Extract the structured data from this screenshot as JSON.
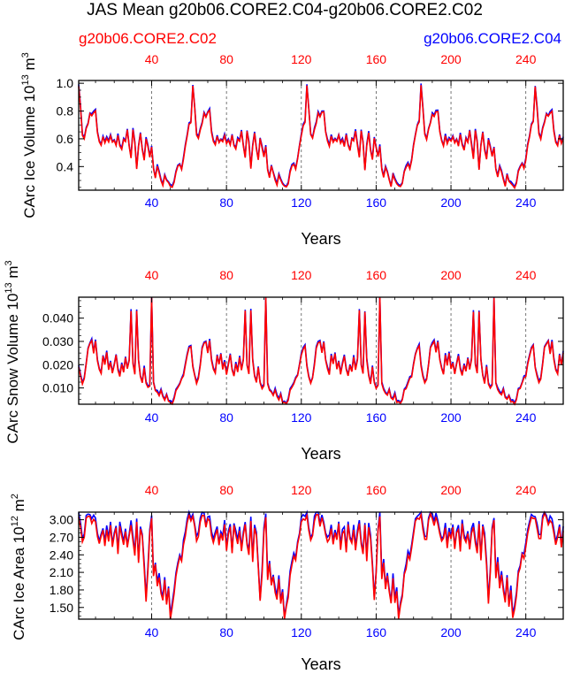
{
  "title": "JAS Mean g20b06.CORE2.C04-g20b06.CORE2.C02",
  "colors": {
    "case_red": "#ff0000",
    "case_blue": "#0000ff",
    "axis": "#000000",
    "grid": "#555555"
  },
  "legend": {
    "left": "g20b06.CORE2.C02",
    "right": "g20b06.CORE2.C04"
  },
  "chart_data": [
    {
      "type": "line",
      "ylabel": "CArc Ice Volume 10",
      "ylabel_exp": "13",
      "ylabel_unit": " m",
      "ylabel_unit_exp": "3",
      "xlabel": "Years",
      "xlim": [
        1,
        260
      ],
      "ylim": [
        0.23,
        1.02
      ],
      "yticks": [
        0.4,
        0.6,
        0.8,
        1.0
      ],
      "ytick_labels": [
        "0.4",
        "0.6",
        "0.8",
        "1.0"
      ],
      "top_ticks": [
        "40",
        "80",
        "120",
        "160",
        "200",
        "240"
      ],
      "bottom_ticks": [
        "40",
        "80",
        "120",
        "160",
        "200",
        "240"
      ],
      "tick_values": [
        40,
        80,
        120,
        160,
        200,
        240
      ],
      "cycle": [
        0.98,
        0.82,
        0.63,
        0.6,
        0.67,
        0.71,
        0.78,
        0.76,
        0.79,
        0.8,
        0.65,
        0.58,
        0.55,
        0.62,
        0.57,
        0.6,
        0.58,
        0.62,
        0.57,
        0.59,
        0.55,
        0.63,
        0.55,
        0.52,
        0.6,
        0.58,
        0.66,
        0.55,
        0.46,
        0.66,
        0.57,
        0.38,
        0.55,
        0.64,
        0.52,
        0.45,
        0.6,
        0.54,
        0.47,
        0.54,
        0.38,
        0.32,
        0.4,
        0.36,
        0.3,
        0.26,
        0.34,
        0.3,
        0.28,
        0.26,
        0.25,
        0.28,
        0.36,
        0.4,
        0.42,
        0.38,
        0.45,
        0.55,
        0.62,
        0.7,
        0.72
      ],
      "period": 61,
      "offset_cycle": 0.01,
      "series": [
        {
          "name": "g20b06.CORE2.C04",
          "color": "#0000ff"
        },
        {
          "name": "g20b06.CORE2.C02",
          "color": "#ff0000"
        }
      ]
    },
    {
      "type": "line",
      "ylabel": "CArc Snow Volume 10",
      "ylabel_exp": "13",
      "ylabel_unit": " m",
      "ylabel_unit_exp": "3",
      "xlabel": "Years",
      "xlim": [
        1,
        260
      ],
      "ylim": [
        0.003,
        0.049
      ],
      "yticks": [
        0.01,
        0.02,
        0.03,
        0.04
      ],
      "ytick_labels": [
        "0.010",
        "0.020",
        "0.030",
        "0.040"
      ],
      "top_ticks": [
        "40",
        "80",
        "120",
        "160",
        "200",
        "240"
      ],
      "bottom_ticks": [
        "40",
        "80",
        "120",
        "160",
        "200",
        "240"
      ],
      "tick_values": [
        40,
        80,
        120,
        160,
        200,
        240
      ],
      "cycle": [
        0.019,
        0.015,
        0.012,
        0.014,
        0.02,
        0.027,
        0.029,
        0.03,
        0.025,
        0.03,
        0.022,
        0.018,
        0.016,
        0.024,
        0.02,
        0.025,
        0.018,
        0.021,
        0.016,
        0.02,
        0.024,
        0.018,
        0.015,
        0.02,
        0.017,
        0.023,
        0.018,
        0.022,
        0.043,
        0.02,
        0.016,
        0.043,
        0.022,
        0.015,
        0.012,
        0.019,
        0.012,
        0.01,
        0.011,
        0.049,
        0.012,
        0.009,
        0.008,
        0.007,
        0.009,
        0.006,
        0.005,
        0.007,
        0.004,
        0.004,
        0.003,
        0.005,
        0.009,
        0.01,
        0.012,
        0.014,
        0.015,
        0.02,
        0.024,
        0.027,
        0.028
      ],
      "period": 61,
      "offset_cycle": 0.0006,
      "series": [
        {
          "name": "g20b06.CORE2.C04",
          "color": "#0000ff"
        },
        {
          "name": "g20b06.CORE2.C02",
          "color": "#ff0000"
        }
      ]
    },
    {
      "type": "line",
      "ylabel": "CArc Ice Area 10",
      "ylabel_exp": "12",
      "ylabel_unit": " m",
      "ylabel_unit_exp": "2",
      "xlabel": "Years",
      "xlim": [
        1,
        260
      ],
      "ylim": [
        1.3,
        3.13
      ],
      "yticks": [
        1.5,
        1.8,
        2.1,
        2.4,
        2.7,
        3.0
      ],
      "ytick_labels": [
        "1.50",
        "1.80",
        "2.10",
        "2.40",
        "2.70",
        "3.00"
      ],
      "top_ticks": [
        "40",
        "80",
        "120",
        "160",
        "200",
        "240"
      ],
      "bottom_ticks": [
        "40",
        "80",
        "120",
        "160",
        "200",
        "240"
      ],
      "tick_values": [
        40,
        80,
        120,
        160,
        200,
        240
      ],
      "cycle": [
        3.05,
        2.85,
        2.65,
        2.7,
        3.0,
        3.08,
        3.05,
        2.9,
        3.02,
        2.95,
        2.75,
        2.6,
        2.7,
        2.85,
        2.55,
        2.8,
        2.65,
        2.9,
        2.5,
        2.75,
        2.85,
        2.45,
        2.9,
        2.7,
        2.6,
        2.8,
        2.5,
        2.75,
        2.9,
        2.6,
        2.4,
        2.95,
        2.3,
        2.85,
        2.7,
        2.2,
        1.6,
        2.1,
        2.8,
        3.02,
        2.0,
        2.25,
        1.85,
        2.05,
        1.75,
        1.6,
        2.0,
        1.55,
        1.8,
        1.3,
        1.5,
        1.7,
        2.05,
        2.2,
        2.4,
        2.3,
        2.55,
        2.75,
        2.95,
        3.05,
        3.0
      ],
      "period": 61,
      "offset_cycle": 0.06,
      "series": [
        {
          "name": "g20b06.CORE2.C04",
          "color": "#0000ff"
        },
        {
          "name": "g20b06.CORE2.C02",
          "color": "#ff0000"
        }
      ]
    }
  ]
}
